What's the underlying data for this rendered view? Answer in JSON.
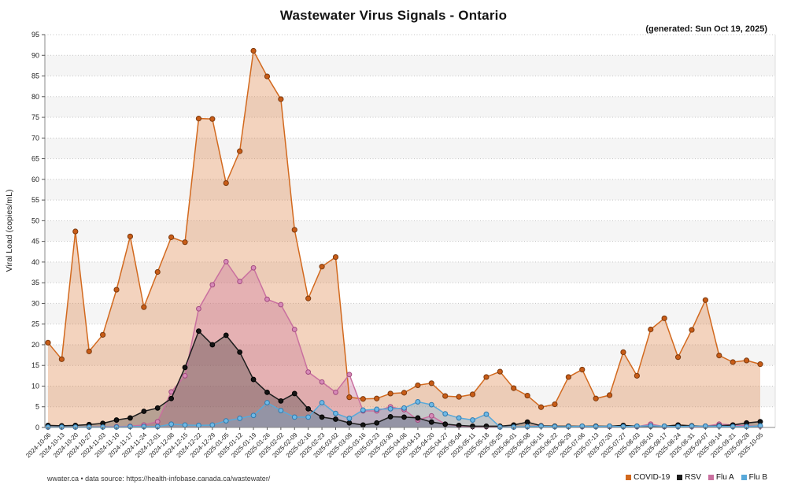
{
  "chart_data": {
    "type": "area",
    "title": "Wastewater Virus Signals - Ontario",
    "generated_label": "(generated: Sun Oct 19, 2025)",
    "ylabel": "Viral Load (copies/mL)",
    "ylim": [
      0,
      95
    ],
    "ytick_step": 5,
    "grid": "horizontal-dotted",
    "background_bands": true,
    "legend_position": "bottom-right",
    "categories": [
      "2024-10-06",
      "2024-10-13",
      "2024-10-20",
      "2024-10-27",
      "2024-11-03",
      "2024-11-10",
      "2024-11-17",
      "2024-11-24",
      "2024-12-01",
      "2024-12-08",
      "2024-12-15",
      "2024-12-22",
      "2024-12-29",
      "2025-01-05",
      "2025-01-12",
      "2025-01-19",
      "2025-01-26",
      "2025-02-02",
      "2025-02-09",
      "2025-02-16",
      "2025-02-23",
      "2025-03-02",
      "2025-03-09",
      "2025-03-16",
      "2025-03-23",
      "2025-03-30",
      "2025-04-06",
      "2025-04-13",
      "2025-04-20",
      "2025-04-27",
      "2025-05-04",
      "2025-05-11",
      "2025-05-18",
      "2025-05-25",
      "2025-06-01",
      "2025-06-08",
      "2025-06-15",
      "2025-06-22",
      "2025-06-29",
      "2025-07-06",
      "2025-07-13",
      "2025-07-20",
      "2025-07-27",
      "2025-08-03",
      "2025-08-10",
      "2025-08-17",
      "2025-08-24",
      "2025-08-31",
      "2025-09-07",
      "2025-09-14",
      "2025-09-21",
      "2025-09-28",
      "2025-10-05"
    ],
    "series": [
      {
        "name": "COVID-19",
        "color": "#d2691e",
        "marker_fill": "#c85c17",
        "marker_edge": "#7d3a0e",
        "fill": "rgba(217,119,54,0.32)",
        "values": [
          20.5,
          16.5,
          47.4,
          18.4,
          22.4,
          33.3,
          46.2,
          29.1,
          37.6,
          46.0,
          44.8,
          74.7,
          74.6,
          59.1,
          66.8,
          91.1,
          84.9,
          79.4,
          47.8,
          31.2,
          38.9,
          41.2,
          7.3,
          6.9,
          7.0,
          8.2,
          8.4,
          10.2,
          10.7,
          7.6,
          7.4,
          8.0,
          12.2,
          13.5,
          9.5,
          7.7,
          4.9,
          5.6,
          12.2,
          14.0,
          7.0,
          7.8,
          18.2,
          12.5,
          23.7,
          26.4,
          17.0,
          23.6,
          30.8,
          17.4,
          15.8,
          16.2,
          15.3
        ]
      },
      {
        "name": "RSV",
        "color": "#1c1c1c",
        "marker_fill": "#141414",
        "marker_edge": "#000000",
        "fill": "rgba(55,55,55,0.32)",
        "values": [
          0.5,
          0.4,
          0.5,
          0.7,
          1.0,
          1.8,
          2.3,
          3.9,
          4.7,
          7.0,
          14.5,
          23.3,
          20.0,
          22.3,
          18.2,
          11.6,
          8.5,
          6.4,
          8.2,
          4.5,
          2.5,
          2.0,
          1.1,
          0.6,
          1.1,
          2.6,
          2.5,
          2.3,
          1.3,
          0.8,
          0.5,
          0.3,
          0.3,
          0.3,
          0.6,
          1.3,
          0.4,
          0.3,
          0.3,
          0.3,
          0.3,
          0.3,
          0.5,
          0.3,
          0.3,
          0.3,
          0.6,
          0.4,
          0.3,
          0.4,
          0.6,
          1.1,
          1.4
        ]
      },
      {
        "name": "Flu A",
        "color": "#c9709f",
        "marker_fill": "#d78ab8",
        "marker_edge": "#a14a7e",
        "fill": "rgba(199,107,156,0.32)",
        "values": [
          0.1,
          0.1,
          0.1,
          0.1,
          0.2,
          0.2,
          0.3,
          0.6,
          1.4,
          8.6,
          12.5,
          28.7,
          34.5,
          40.1,
          35.3,
          38.6,
          31.0,
          29.7,
          23.7,
          13.4,
          11.0,
          8.5,
          12.8,
          4.0,
          4.0,
          5.0,
          4.3,
          1.8,
          2.8,
          0.8,
          0.4,
          0.2,
          0.2,
          0.1,
          0.1,
          0.2,
          0.4,
          0.2,
          0.2,
          0.2,
          0.2,
          0.2,
          0.2,
          0.2,
          0.8,
          0.2,
          0.2,
          0.2,
          0.3,
          0.8,
          0.6,
          0.4,
          0.3
        ]
      },
      {
        "name": "Flu B",
        "color": "#58a9da",
        "marker_fill": "#6fb9e6",
        "marker_edge": "#2f79ad",
        "fill": "rgba(96,170,220,0.32)",
        "values": [
          0.1,
          0.1,
          0.1,
          0.1,
          0.1,
          0.1,
          0.2,
          0.2,
          0.2,
          0.8,
          0.6,
          0.5,
          0.6,
          1.6,
          2.2,
          2.9,
          6.0,
          4.1,
          2.5,
          2.5,
          6.0,
          3.4,
          2.2,
          4.2,
          4.4,
          4.5,
          4.7,
          6.2,
          5.5,
          3.3,
          2.3,
          1.8,
          3.2,
          0.1,
          0.1,
          0.2,
          0.3,
          0.2,
          0.2,
          0.3,
          0.2,
          0.3,
          0.2,
          0.3,
          0.4,
          0.3,
          0.2,
          0.3,
          0.3,
          0.3,
          0.2,
          0.2,
          0.4
        ]
      }
    ],
    "draw_order": [
      0,
      2,
      1,
      3
    ]
  },
  "footer": {
    "credit": "wwater.ca • data source: https://health-infobase.canada.ca/wastewater/"
  }
}
